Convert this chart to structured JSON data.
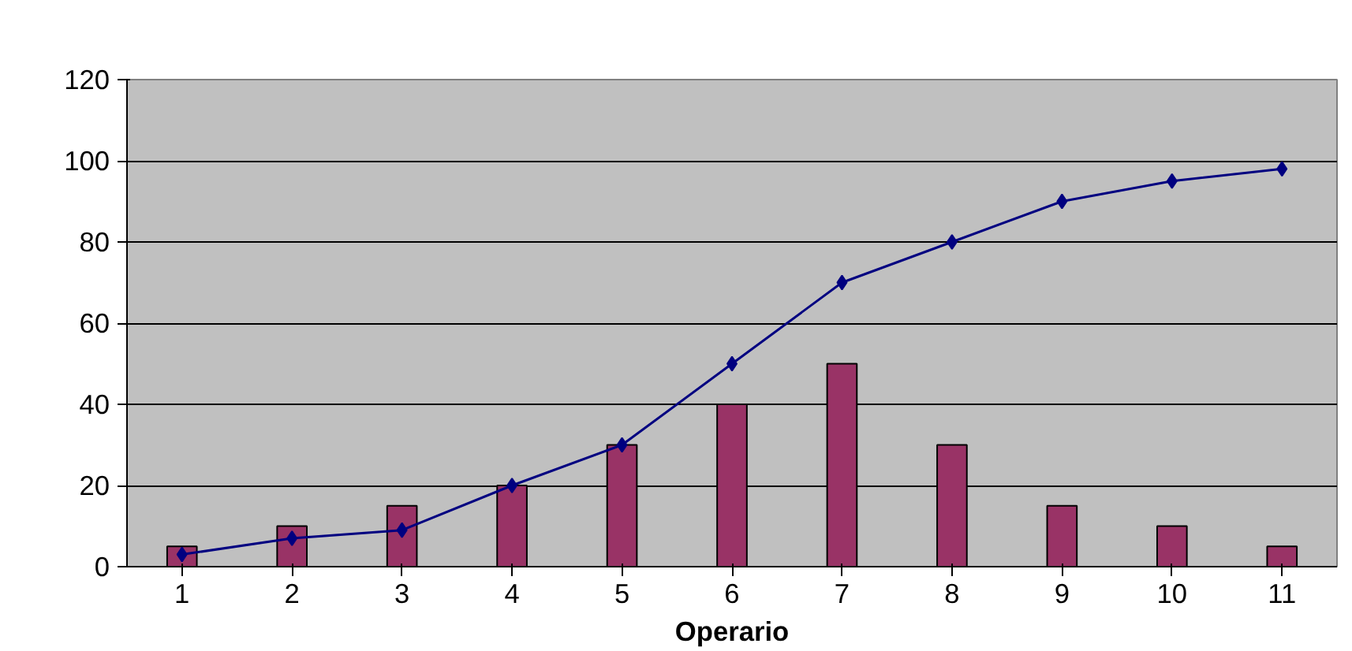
{
  "chart_data": {
    "type": "bar",
    "xlabel": "Operario",
    "categories": [
      "1",
      "2",
      "3",
      "4",
      "5",
      "6",
      "7",
      "8",
      "9",
      "10",
      "11"
    ],
    "series": [
      {
        "color": "#993366",
        "values": [
          5,
          10,
          15,
          20,
          30,
          40,
          50,
          30,
          15,
          10,
          5
        ]
      },
      {
        "type": "line",
        "color": "#000080",
        "values": [
          3,
          7,
          9,
          20,
          30,
          50,
          70,
          80,
          90,
          95,
          98
        ]
      }
    ],
    "ylim": [
      0,
      120
    ],
    "yticks": [
      0,
      20,
      40,
      60,
      80,
      100,
      120
    ],
    "grid": "y",
    "marker": "diamond"
  }
}
